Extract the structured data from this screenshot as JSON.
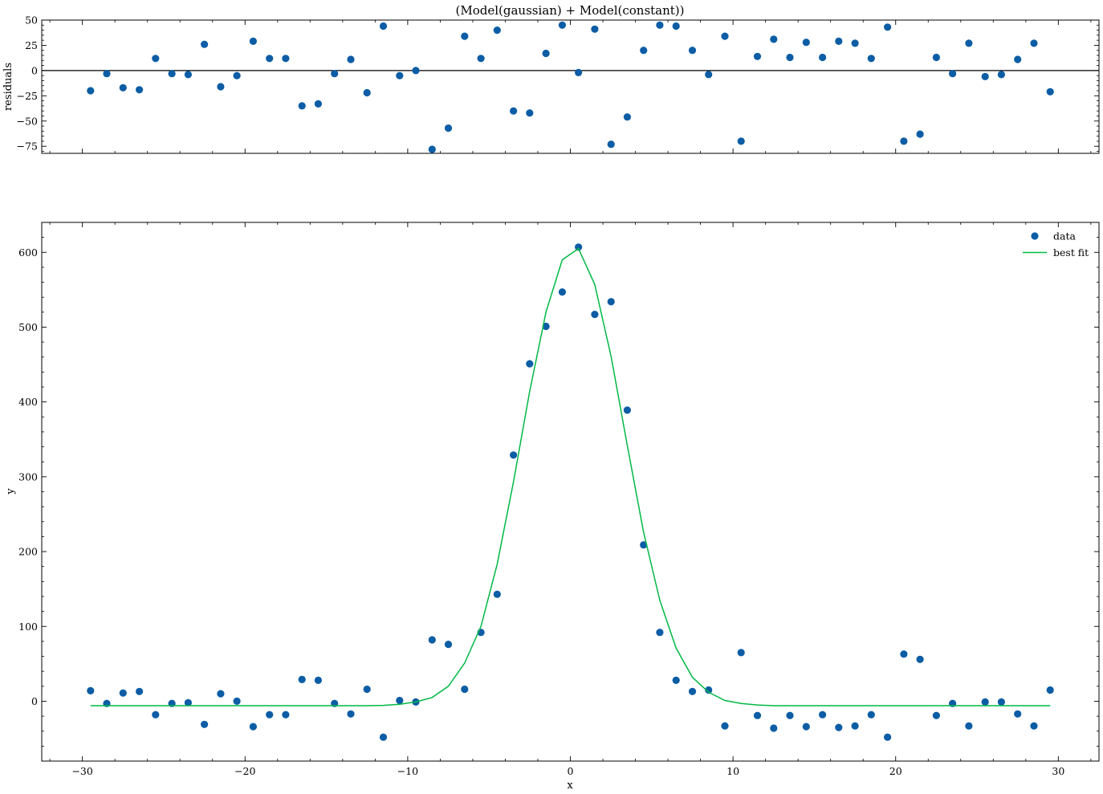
{
  "chart_data": [
    {
      "type": "scatter",
      "title": "(Model(gaussian) + Model(constant))",
      "xlabel": "",
      "ylabel": "residuals",
      "xlim": [
        -32.5,
        32.5
      ],
      "ylim": [
        -82,
        50
      ],
      "xticks": [
        -30,
        -20,
        -10,
        0,
        10,
        20,
        30
      ],
      "yticks": [
        -75,
        -50,
        -25,
        0,
        25,
        50
      ],
      "ytick_labels": [
        "−75",
        "−50",
        "−25",
        "0",
        "25",
        "50"
      ],
      "show_xtick_labels": false,
      "reference_line_y": 0,
      "series": [
        {
          "x": [
            -29.5,
            -28.5,
            -27.5,
            -26.5,
            -25.5,
            -24.5,
            -23.5,
            -22.5,
            -21.5,
            -20.5,
            -19.5,
            -18.5,
            -17.5,
            -16.5,
            -15.5,
            -14.5,
            -13.5,
            -12.5,
            -11.5,
            -10.5,
            -9.5,
            -8.5,
            -7.5,
            -6.5,
            -5.5,
            -4.5,
            -3.5,
            -2.5,
            -1.5,
            -0.5,
            0.5,
            1.5,
            2.5,
            3.5,
            4.5,
            5.5,
            6.5,
            7.5,
            8.5,
            9.5,
            10.5,
            11.5,
            12.5,
            13.5,
            14.5,
            15.5,
            16.5,
            17.5,
            18.5,
            19.5,
            20.5,
            21.5,
            22.5,
            23.5,
            24.5,
            25.5,
            26.5,
            27.5,
            28.5,
            29.5
          ],
          "y": [
            -20,
            -3,
            -17,
            -19,
            12,
            -3,
            -4,
            26,
            -16,
            -5,
            29,
            12,
            12,
            -35,
            -33,
            -3,
            11,
            -22,
            44,
            -5,
            0,
            -78,
            -57,
            34,
            12,
            40,
            -40,
            -42,
            17,
            45,
            -2,
            41,
            -73,
            -46,
            20,
            45,
            44,
            20,
            -4,
            34,
            -70,
            14,
            31,
            13,
            28,
            13,
            29,
            27,
            12,
            43,
            -70,
            -63,
            13,
            -3,
            27,
            -6,
            -4,
            11,
            27,
            -21
          ]
        }
      ],
      "colors": {
        "marker": "#0C5DA5",
        "reference_line": "#000000"
      }
    },
    {
      "type": "scatter",
      "title": "",
      "xlabel": "x",
      "ylabel": "y",
      "xlim": [
        -32.5,
        32.5
      ],
      "ylim": [
        -80,
        640
      ],
      "xticks": [
        -30,
        -20,
        -10,
        0,
        10,
        20,
        30
      ],
      "xtick_labels": [
        "−30",
        "−20",
        "−10",
        "0",
        "10",
        "20",
        "30"
      ],
      "yticks": [
        0,
        100,
        200,
        300,
        400,
        500,
        600
      ],
      "ytick_labels": [
        "0",
        "100",
        "200",
        "300",
        "400",
        "500",
        "600"
      ],
      "legend": {
        "position": "top-right",
        "entries": [
          "data",
          "best fit"
        ]
      },
      "series": [
        {
          "name": "data",
          "kind": "points",
          "color": "#0C5DA5",
          "x": [
            -29.5,
            -28.5,
            -27.5,
            -26.5,
            -25.5,
            -24.5,
            -23.5,
            -22.5,
            -21.5,
            -20.5,
            -19.5,
            -18.5,
            -17.5,
            -16.5,
            -15.5,
            -14.5,
            -13.5,
            -12.5,
            -11.5,
            -10.5,
            -9.5,
            -8.5,
            -7.5,
            -6.5,
            -5.5,
            -4.5,
            -3.5,
            -2.5,
            -1.5,
            -0.5,
            0.5,
            1.5,
            2.5,
            3.5,
            4.5,
            5.5,
            6.5,
            7.5,
            8.5,
            9.5,
            10.5,
            11.5,
            12.5,
            13.5,
            14.5,
            15.5,
            16.5,
            17.5,
            18.5,
            19.5,
            20.5,
            21.5,
            22.5,
            23.5,
            24.5,
            25.5,
            26.5,
            27.5,
            28.5,
            29.5
          ],
          "y": [
            14,
            -3,
            11,
            13,
            -18,
            -3,
            -2,
            -31,
            10,
            0,
            -34,
            -18,
            -18,
            29,
            28,
            -3,
            -17,
            16,
            -48,
            1,
            -1,
            82,
            76,
            16,
            92,
            143,
            329,
            451,
            501,
            547,
            607,
            517,
            534,
            389,
            209,
            92,
            28,
            13,
            15,
            -33,
            65,
            -19,
            -36,
            -19,
            -34,
            -18,
            -35,
            -33,
            -18,
            -48,
            63,
            56,
            -19,
            -3,
            -33,
            -1,
            -1,
            -17,
            -33,
            15
          ]
        },
        {
          "name": "best fit",
          "kind": "line",
          "color": "#00B945",
          "x": [
            -29.5,
            -28.5,
            -27.5,
            -26.5,
            -25.5,
            -24.5,
            -23.5,
            -22.5,
            -21.5,
            -20.5,
            -19.5,
            -18.5,
            -17.5,
            -16.5,
            -15.5,
            -14.5,
            -13.5,
            -12.5,
            -11.5,
            -10.5,
            -9.5,
            -8.5,
            -7.5,
            -6.5,
            -5.5,
            -4.5,
            -3.5,
            -2.5,
            -1.5,
            -0.5,
            0.5,
            1.5,
            2.5,
            3.5,
            4.5,
            5.5,
            6.5,
            7.5,
            8.5,
            9.5,
            10.5,
            11.5,
            12.5,
            13.5,
            14.5,
            15.5,
            16.5,
            17.5,
            18.5,
            19.5,
            20.5,
            21.5,
            22.5,
            23.5,
            24.5,
            25.5,
            26.5,
            27.5,
            28.5,
            29.5
          ],
          "y": [
            -6,
            -6,
            -6,
            -6,
            -6,
            -6,
            -6,
            -6,
            -6,
            -6,
            -6,
            -6,
            -6,
            -6,
            -6,
            -6,
            -6,
            -6,
            -5.5,
            -4,
            -1,
            5,
            20,
            51,
            100,
            183,
            293,
            414,
            520,
            590,
            605,
            557,
            461,
            342,
            226,
            135,
            71,
            32,
            12,
            1,
            -3,
            -5,
            -6,
            -6,
            -6,
            -6,
            -6,
            -6,
            -6,
            -6,
            -6,
            -6,
            -6,
            -6,
            -6,
            -6,
            -6,
            -6,
            -6,
            -6
          ]
        }
      ]
    }
  ]
}
